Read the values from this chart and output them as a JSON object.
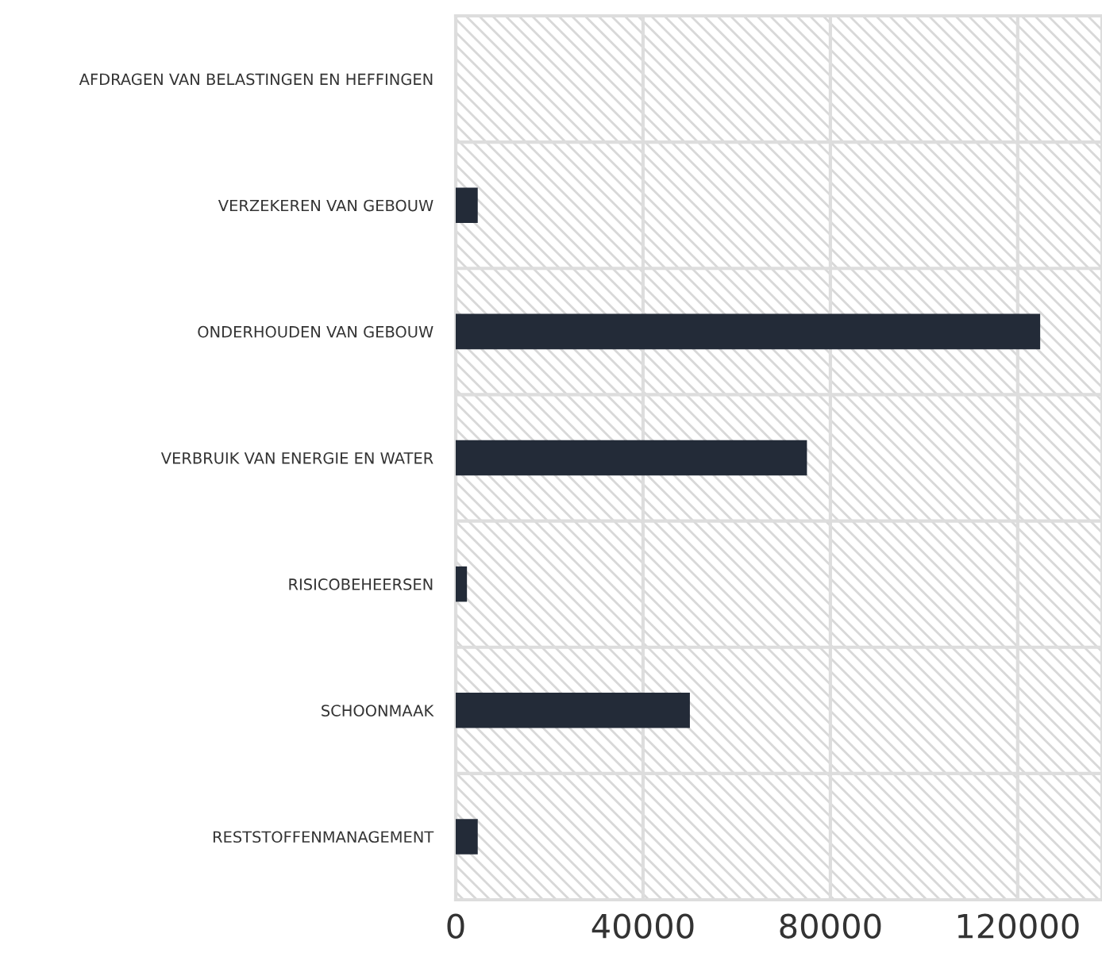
{
  "chart_data": {
    "type": "bar",
    "orientation": "horizontal",
    "categories": [
      "AFDRAGEN VAN BELASTINGEN EN HEFFINGEN",
      "VERZEKEREN VAN GEBOUW",
      "ONDERHOUDEN VAN GEBOUW",
      "VERBRUIK VAN ENERGIE EN WATER",
      "RISICOBEHEERSEN",
      "SCHOONMAAK",
      "RESTSTOFFENMANAGEMENT"
    ],
    "values": [
      0,
      4700,
      124800,
      75000,
      2400,
      50000,
      4700
    ],
    "color": "#232b38",
    "xlim": [
      0,
      138000
    ],
    "xticks": [
      0,
      40000,
      80000,
      120000
    ],
    "grid": true
  }
}
